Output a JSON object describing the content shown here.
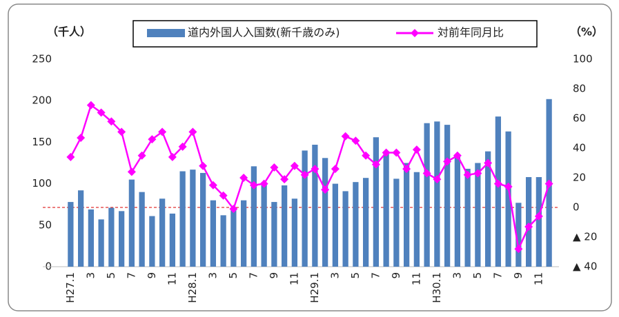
{
  "chart_data": {
    "type": "bar-line",
    "y_label": "（千人）",
    "y2_label": "（%）",
    "categories": [
      "H27.1",
      null,
      "3",
      null,
      "5",
      null,
      "7",
      null,
      "9",
      null,
      "11",
      null,
      "H28.1",
      null,
      "3",
      null,
      "5",
      null,
      "7",
      null,
      "9",
      null,
      "11",
      null,
      "H29.1",
      null,
      "3",
      null,
      "5",
      null,
      "7",
      null,
      "9",
      null,
      "11",
      null,
      "H30.1",
      null,
      "3",
      null,
      "5",
      null,
      "7",
      null,
      "9",
      null,
      "11",
      null
    ],
    "series": [
      {
        "name": "道内外国人入国数(新千歳のみ)",
        "color": "#4f81bd",
        "type": "bar",
        "values": [
          78,
          92,
          69,
          57,
          71,
          67,
          105,
          90,
          61,
          82,
          64,
          115,
          117,
          113,
          80,
          62,
          68,
          80,
          121,
          101,
          78,
          98,
          82,
          140,
          147,
          131,
          100,
          91,
          102,
          107,
          156,
          136,
          106,
          125,
          114,
          173,
          175,
          171,
          132,
          118,
          125,
          139,
          181,
          163,
          77,
          108,
          108,
          202
        ]
      },
      {
        "name": "対前年同月比",
        "color": "#ff00ff",
        "type": "line",
        "axis": "y2",
        "values": [
          34,
          47,
          69,
          64,
          58,
          51,
          24,
          35,
          46,
          51,
          34,
          41,
          51,
          28,
          15,
          8,
          -1,
          20,
          15,
          16,
          27,
          19,
          28,
          22,
          26,
          12,
          26,
          48,
          45,
          35,
          29,
          37,
          37,
          26,
          39,
          23,
          19,
          31,
          35,
          22,
          23,
          30,
          16,
          14,
          -28,
          -13,
          -6,
          16
        ]
      }
    ],
    "ylim": [
      0,
      250
    ],
    "yticks": [
      0,
      50,
      100,
      150,
      200,
      250
    ],
    "y2lim": [
      -40,
      100
    ],
    "y2ticks": [
      {
        "value": -40,
        "label": "▲ 40"
      },
      {
        "value": -20,
        "label": "▲ 20"
      },
      0,
      20,
      40,
      60,
      80,
      100
    ],
    "zero_line_color": "#e03030"
  }
}
